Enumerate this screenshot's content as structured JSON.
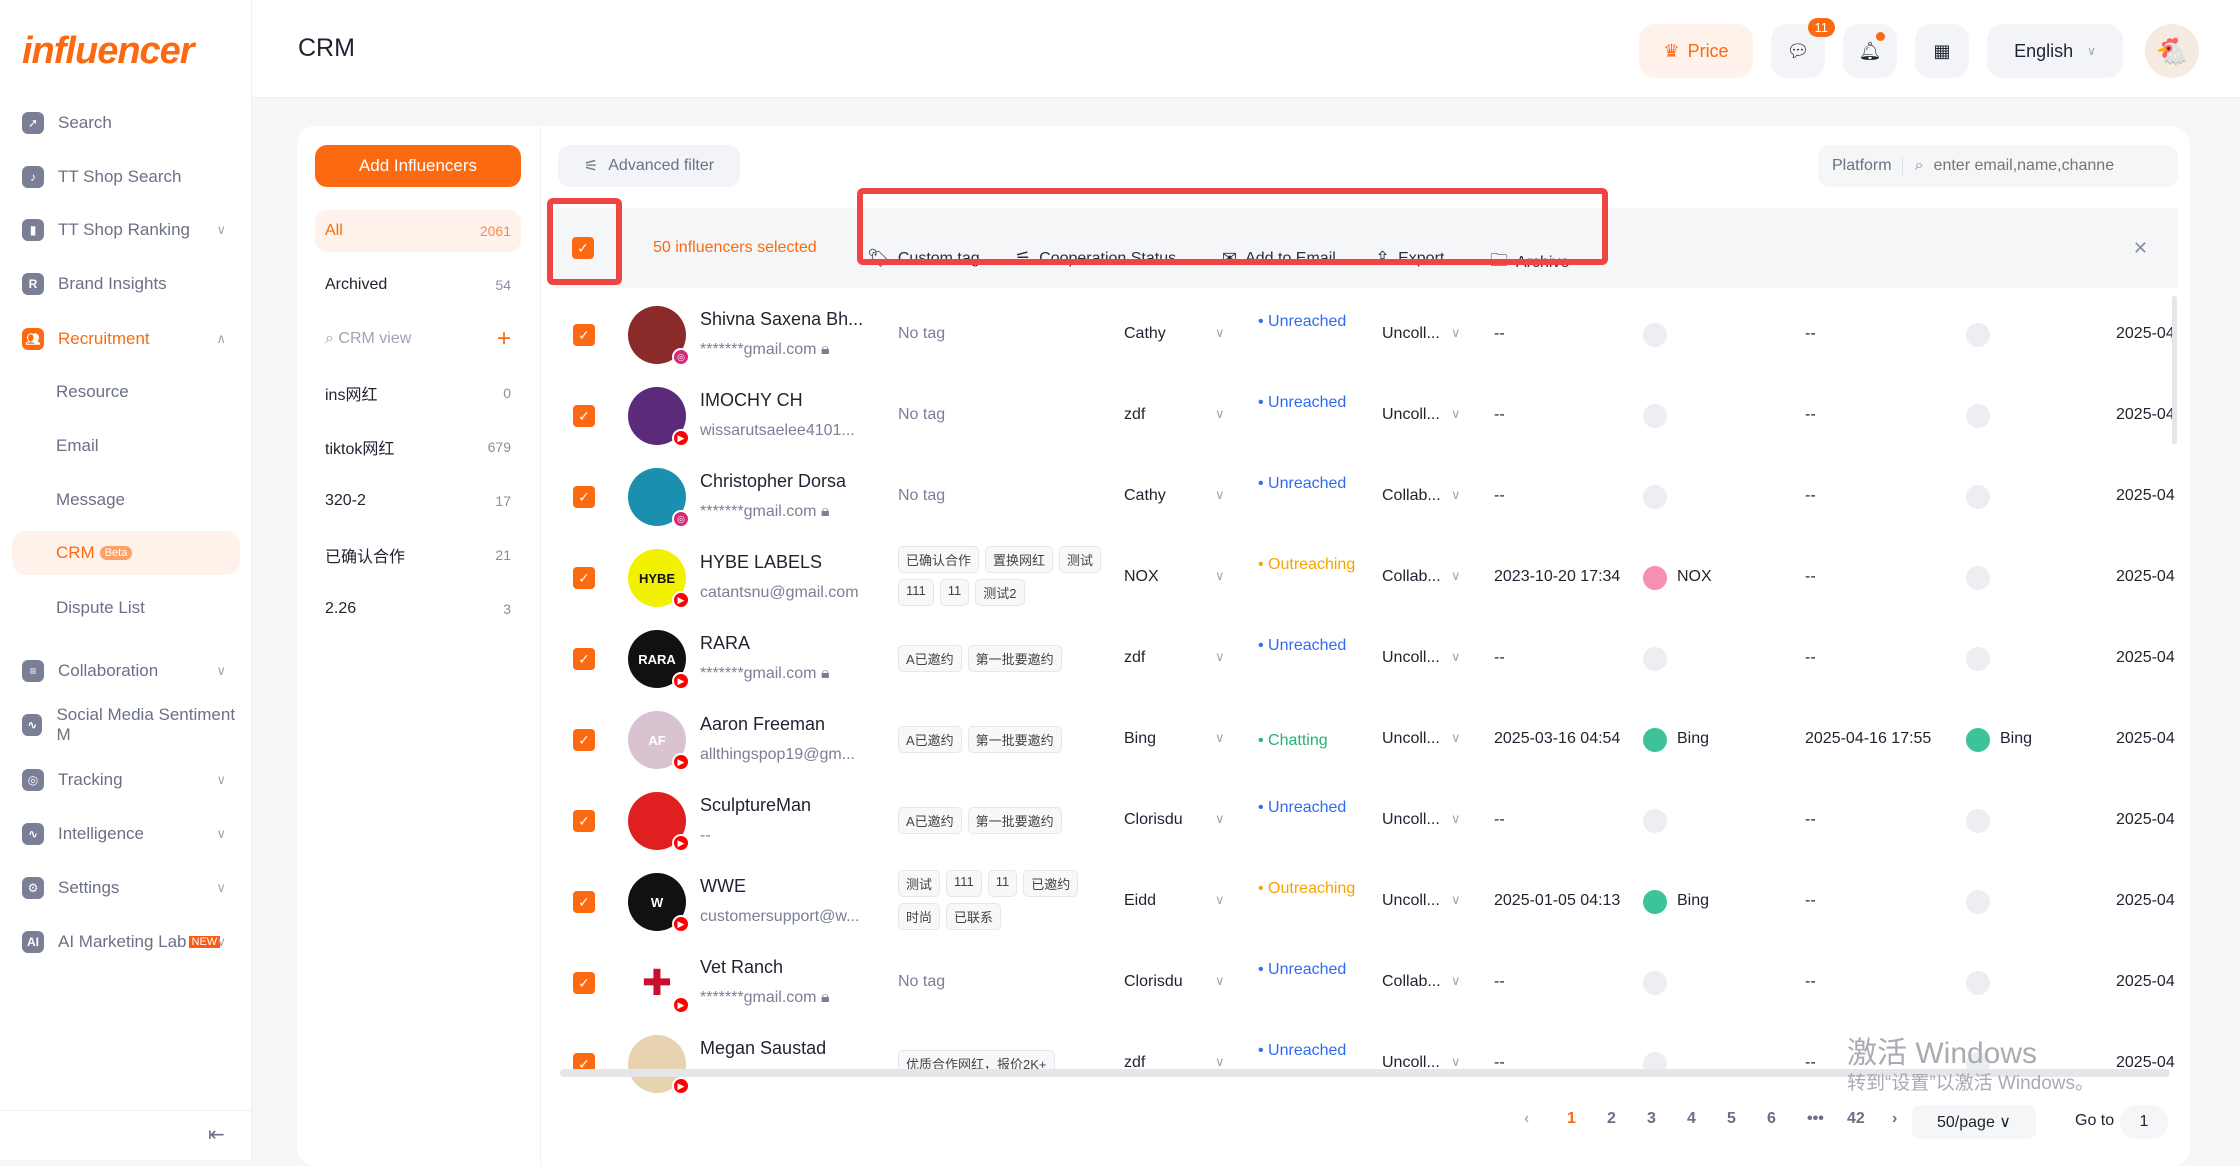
{
  "brand": {
    "logo": "influencer",
    "accent": "#fb6a10"
  },
  "sidebar": {
    "items": [
      {
        "label": "Search",
        "icon": "compass-icon",
        "y": 0
      },
      {
        "label": "TT Shop Search",
        "icon": "shopping-bag-icon"
      },
      {
        "label": "TT Shop Ranking",
        "icon": "bar-chart-icon",
        "chevron": "down"
      },
      {
        "label": "Brand Insights",
        "icon": "shield-r-icon"
      },
      {
        "label": "Recruitment",
        "icon": "users-icon",
        "chevron": "up",
        "active": true
      },
      {
        "label": "Resource",
        "sub": true
      },
      {
        "label": "Email",
        "sub": true
      },
      {
        "label": "Message",
        "sub": true
      },
      {
        "label": "CRM",
        "sub": true,
        "selected": true,
        "badge": "Beta"
      },
      {
        "label": "Dispute List",
        "sub": true
      },
      {
        "label": "Collaboration",
        "icon": "document-icon",
        "chevron": "down"
      },
      {
        "label": "Social Media Sentiment M",
        "icon": "pulse-icon"
      },
      {
        "label": "Tracking",
        "icon": "target-icon",
        "chevron": "down"
      },
      {
        "label": "Intelligence",
        "icon": "pulse-icon",
        "chevron": "down"
      },
      {
        "label": "Settings",
        "icon": "gear-icon",
        "chevron": "down"
      },
      {
        "label": "AI Marketing Lab",
        "icon": "ai-chip-icon",
        "chevron": "down",
        "badge": "NEW"
      }
    ]
  },
  "header": {
    "title": "CRM",
    "price": "Price",
    "message_count": "11",
    "language": "English"
  },
  "left_panel": {
    "add_button": "Add Influencers",
    "view_search_placeholder": "CRM view",
    "views": [
      {
        "label": "All",
        "count": "2061",
        "selected": true
      },
      {
        "label": "Archived",
        "count": "54"
      },
      {
        "label": "ins网红",
        "count": "0"
      },
      {
        "label": "tiktok网红",
        "count": "679"
      },
      {
        "label": "320-2",
        "count": "17"
      },
      {
        "label": "已确认合作",
        "count": "21"
      },
      {
        "label": "2.26",
        "count": "3"
      }
    ]
  },
  "toolbar": {
    "advanced_filter": "Advanced filter",
    "platform": "Platform",
    "search_placeholder": "enter email,name,channe"
  },
  "selection": {
    "count_text": "50 influencers selected",
    "actions": [
      {
        "label": "Custom tag",
        "icon": "tag-icon"
      },
      {
        "label": "Cooperation Status",
        "icon": "sliders-icon"
      },
      {
        "label": "Add to Email",
        "icon": "mail-icon"
      },
      {
        "label": "Export",
        "icon": "export-icon"
      },
      {
        "label": "Archive",
        "icon": "folder-icon"
      }
    ]
  },
  "status_colors": {
    "Unreached": "#2f6bf2",
    "Outreaching": "#f5a300",
    "Chatting": "#22b573"
  },
  "rows": [
    {
      "name": "Shivna Saxena Bh...",
      "email": "*******gmail.com",
      "locked": true,
      "platform": "instagram",
      "avatar_color": "#8a2a2a",
      "tags": [],
      "owner": "Cathy",
      "status": "Unreached",
      "coop": "Uncoll...",
      "d1": "--",
      "u1": "",
      "d2": "--",
      "u2": "",
      "d3": "2025-04"
    },
    {
      "name": "IMOCHY CH",
      "email": "wissarutsaelee4101...",
      "platform": "youtube",
      "avatar_color": "#5b2a7a",
      "tags": [],
      "owner": "zdf",
      "status": "Unreached",
      "coop": "Uncoll...",
      "d1": "--",
      "u1": "",
      "d2": "--",
      "u2": "",
      "d3": "2025-04"
    },
    {
      "name": "Christopher Dorsa",
      "email": "*******gmail.com",
      "locked": true,
      "platform": "instagram",
      "avatar_color": "#1a8fb0",
      "tags": [],
      "owner": "Cathy",
      "status": "Unreached",
      "coop": "Collab...",
      "d1": "--",
      "u1": "",
      "d2": "--",
      "u2": "",
      "d3": "2025-04"
    },
    {
      "name": "HYBE LABELS",
      "email": "catantsnu@gmail.com",
      "platform": "youtube",
      "avatar_color": "#f2f200",
      "avatar_text": "HYBE",
      "tags": [
        "已确认合作",
        "置换网红",
        "测试",
        "111",
        "11",
        "测试2"
      ],
      "owner": "NOX",
      "status": "Outreaching",
      "coop": "Collab...",
      "d1": "2023-10-20 17:34",
      "u1": "NOX",
      "u1c": "#f78fb3",
      "d2": "--",
      "u2": "",
      "d3": "2025-04"
    },
    {
      "name": "RARA",
      "email": "*******gmail.com",
      "locked": true,
      "platform": "youtube",
      "avatar_color": "#111111",
      "avatar_text": "RARA",
      "tags": [
        "A已邀约",
        "第一批要邀约"
      ],
      "owner": "zdf",
      "status": "Unreached",
      "coop": "Uncoll...",
      "d1": "--",
      "u1": "",
      "d2": "--",
      "u2": "",
      "d3": "2025-04"
    },
    {
      "name": "Aaron Freeman",
      "email": "allthingspop19@gm...",
      "platform": "youtube",
      "avatar_color": "#d9c3d0",
      "avatar_text": "AF",
      "tags": [
        "A已邀约",
        "第一批要邀约"
      ],
      "owner": "Bing",
      "status": "Chatting",
      "coop": "Uncoll...",
      "d1": "2025-03-16 04:54",
      "u1": "Bing",
      "u1c": "#3cc39a",
      "d2": "2025-04-16 17:55",
      "u2": "Bing",
      "u2c": "#3cc39a",
      "d3": "2025-04"
    },
    {
      "name": "SculptureMan",
      "email": "--",
      "platform": "youtube",
      "avatar_color": "#e02020",
      "tags": [
        "A已邀约",
        "第一批要邀约"
      ],
      "owner": "Clorisdu",
      "status": "Unreached",
      "coop": "Uncoll...",
      "d1": "--",
      "u1": "",
      "d2": "--",
      "u2": "",
      "d3": "2025-04"
    },
    {
      "name": "WWE",
      "email": "customersupport@w...",
      "platform": "youtube",
      "avatar_color": "#111111",
      "avatar_text": "W",
      "tags": [
        "测试",
        "111",
        "11",
        "已邀约",
        "时尚",
        "已联系"
      ],
      "owner": "Eidd",
      "status": "Outreaching",
      "coop": "Uncoll...",
      "d1": "2025-01-05 04:13",
      "u1": "Bing",
      "u1c": "#3cc39a",
      "d2": "--",
      "u2": "",
      "d3": "2025-04"
    },
    {
      "name": "Vet Ranch",
      "email": "*******gmail.com",
      "locked": true,
      "platform": "youtube",
      "avatar_color": "#ffffff",
      "avatar_text": "✚",
      "tags": [],
      "owner": "Clorisdu",
      "status": "Unreached",
      "coop": "Collab...",
      "d1": "--",
      "u1": "",
      "d2": "--",
      "u2": "",
      "d3": "2025-04"
    },
    {
      "name": "Megan Saustad",
      "email": "",
      "platform": "youtube",
      "avatar_color": "#e8d3b0",
      "tags": [
        "优质合作网红，报价2K+"
      ],
      "owner": "zdf",
      "status": "Unreached",
      "coop": "Uncoll...",
      "d1": "--",
      "u1": "",
      "d2": "--",
      "u2": "",
      "d3": "2025-04"
    }
  ],
  "no_tag": "No tag",
  "pagination": {
    "pages": [
      "1",
      "2",
      "3",
      "4",
      "5",
      "6",
      "•••",
      "42"
    ],
    "current": "1",
    "page_size": "50/page",
    "goto_label": "Go to",
    "goto_value": "1"
  },
  "watermark": {
    "line1": "激活 Windows",
    "line2": "转到“设置”以激活 Windows。"
  }
}
